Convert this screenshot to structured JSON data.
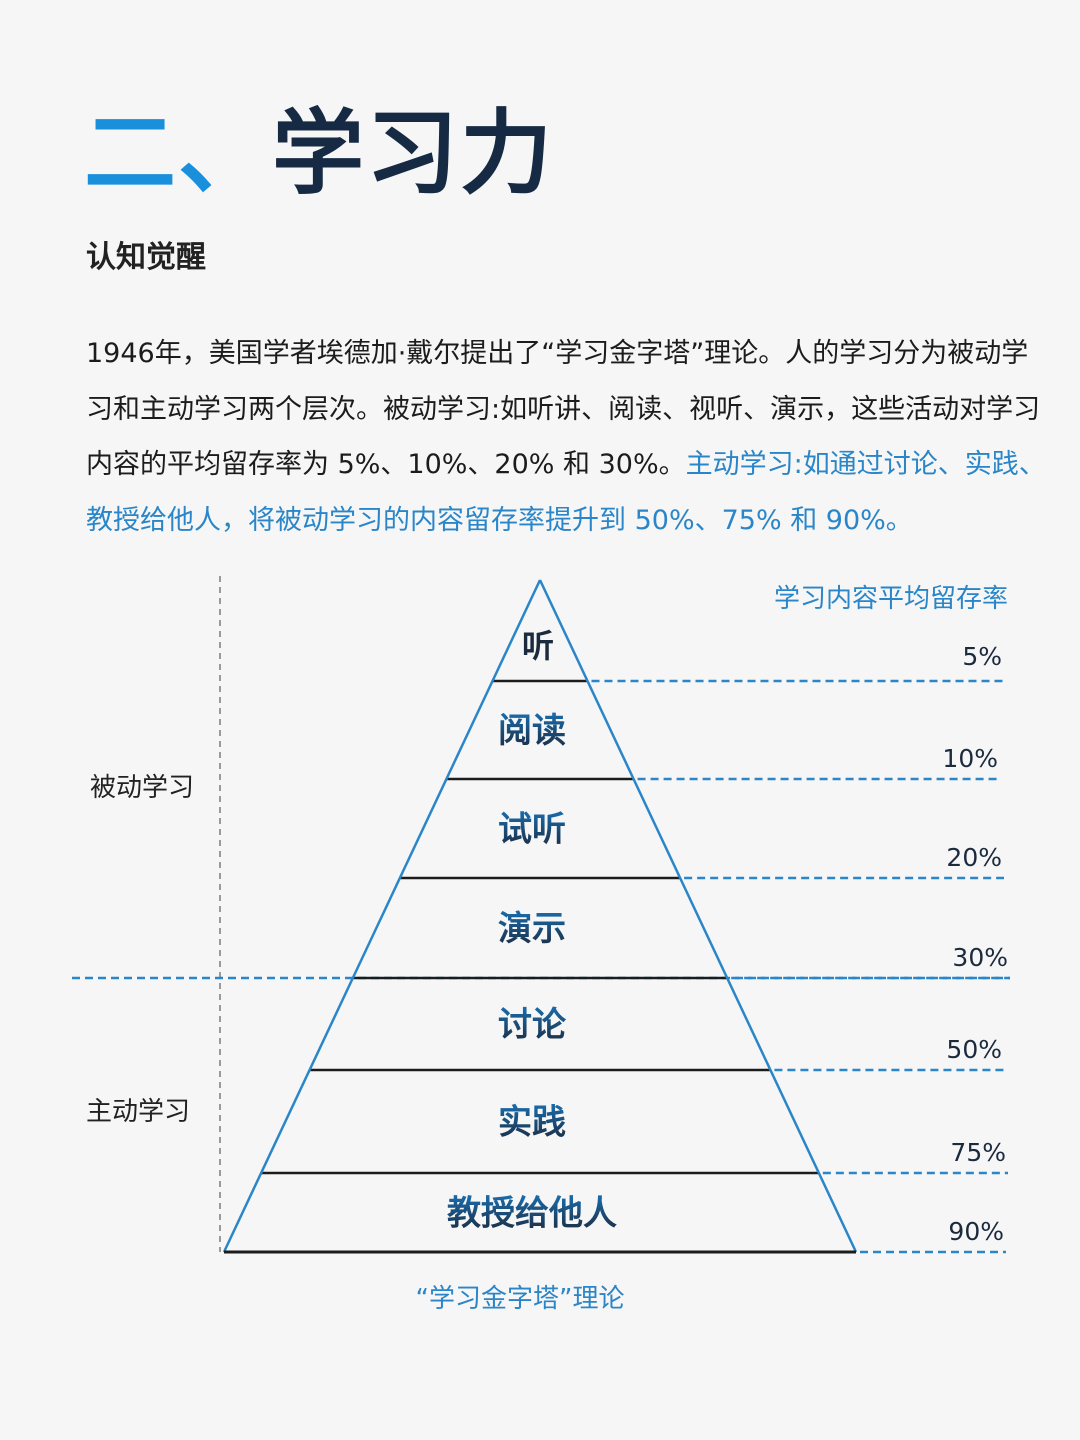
{
  "header": {
    "title_prefix": "二、",
    "title_main": "学习力",
    "subtitle": "认知觉醒"
  },
  "intro": {
    "text_plain": "1946年，美国学者埃德加·戴尔提出了“学习金字塔”理论。人的学习分为被动学习和主动学习两个层次。被动学习:如听讲、阅读、视听、演示，这些活动对学习内容的平均留存率为 5%、10%、20% 和 30%。",
    "text_highlight": "主动学习:如通过讨论、实践、教授给他人，将被动学习的内容留存率提升到 50%、75% 和 90%。"
  },
  "diagram": {
    "retention_header": "学习内容平均留存率",
    "passive_label": "被动学习",
    "active_label": "主动学习",
    "caption": "“学习金字塔”理论",
    "levels": [
      {
        "label": "听",
        "percent": "5%"
      },
      {
        "label": "阅读",
        "percent": "10%"
      },
      {
        "label": "试听",
        "percent": "20%"
      },
      {
        "label": "演示",
        "percent": "30%"
      },
      {
        "label": "讨论",
        "percent": "50%"
      },
      {
        "label": "实践",
        "percent": "75%"
      },
      {
        "label": "教授给他人",
        "percent": "90%"
      }
    ],
    "colors": {
      "accent": "#2a86c8",
      "label_top": "#1a6fb0",
      "label_bottom": "#1c2a3e",
      "line": "#1c1c1c"
    }
  }
}
